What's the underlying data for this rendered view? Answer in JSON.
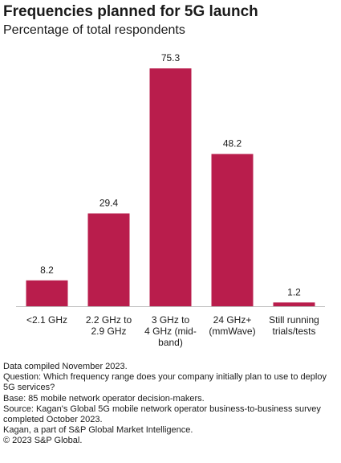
{
  "title": "Frequencies planned for 5G launch",
  "subtitle": "Percentage of total respondents",
  "chart_data": {
    "type": "bar",
    "categories": [
      "<2.1 GHz",
      "2.2 GHz to 2.9 GHz",
      "3 GHz to 4 GHz (mid-band)",
      "24 GHz+ (mmWave)",
      "Still running trials/tests"
    ],
    "category_lines": [
      [
        "<2.1 GHz"
      ],
      [
        "2.2 GHz to",
        "2.9 GHz"
      ],
      [
        "3 GHz to",
        "4 GHz (mid-",
        "band)"
      ],
      [
        "24 GHz+",
        "(mmWave)"
      ],
      [
        "Still running",
        "trials/tests"
      ]
    ],
    "values": [
      8.2,
      29.4,
      75.3,
      48.2,
      1.2
    ],
    "value_labels": [
      "8.2",
      "29.4",
      "75.3",
      "48.2",
      "1.2"
    ],
    "bar_color": "#b91d4c",
    "ylim": [
      0,
      80
    ],
    "grid": false,
    "xlabel": "",
    "ylabel": ""
  },
  "footer": {
    "compiled": "Data compiled November 2023.",
    "question": "Question: Which frequency range does your company initially plan to use to deploy 5G services?",
    "base": "Base: 85 mobile network operator decision-makers.",
    "source": "Source: Kagan's Global 5G mobile network operator business-to-business survey completed October 2023.",
    "publisher": "Kagan, a part of S&P Global Market Intelligence.",
    "copyright": "© 2023 S&P Global."
  }
}
